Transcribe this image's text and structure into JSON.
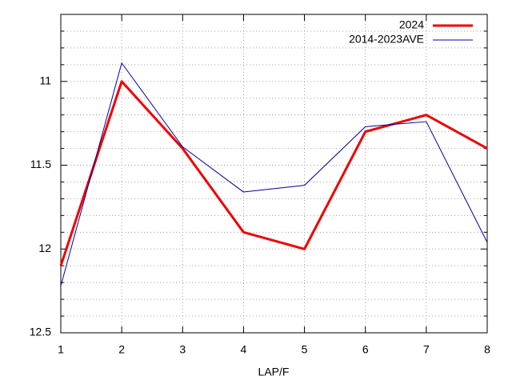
{
  "chart_data": {
    "type": "line",
    "x_label": "LAP/F",
    "x": [
      1,
      2,
      3,
      4,
      5,
      6,
      7,
      8
    ],
    "xlim": [
      1,
      8
    ],
    "xticks": [
      1,
      2,
      3,
      4,
      5,
      6,
      7,
      8
    ],
    "ylim": [
      10.6,
      12.5
    ],
    "y_reversed": true,
    "yticks": [
      11,
      11.5,
      12,
      12.5
    ],
    "yminorticks": [
      10.7,
      10.8,
      10.9,
      11.1,
      11.2,
      11.3,
      11.4,
      11.6,
      11.7,
      11.8,
      11.9,
      12.1,
      12.2,
      12.3,
      12.4
    ],
    "grid": true,
    "legend": "top-right",
    "series": [
      {
        "name": "2024",
        "color": "#ee0000",
        "width": 3,
        "values": [
          12.1,
          11.0,
          11.4,
          11.9,
          12.0,
          11.3,
          11.2,
          11.4
        ]
      },
      {
        "name": "2014-2023AVE",
        "color": "#0000a0",
        "width": 1,
        "values": [
          12.22,
          10.89,
          11.39,
          11.66,
          11.62,
          11.27,
          11.24,
          11.96
        ]
      }
    ]
  }
}
